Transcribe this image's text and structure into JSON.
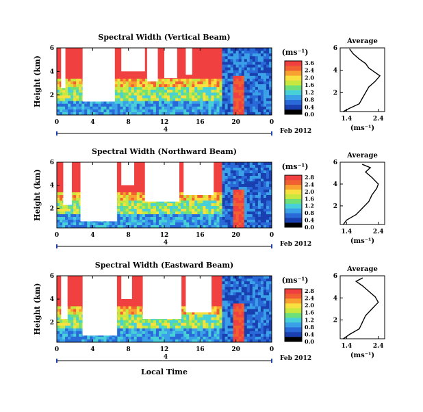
{
  "chart_data": [
    {
      "type": "heatmap",
      "title": "Spectral Width (Vertical Beam)",
      "ylabel": "Height (km)",
      "x_ticks": [
        "0",
        "4",
        "8",
        "12",
        "16",
        "20",
        "0"
      ],
      "y_ticks": [
        "6",
        "4",
        "2"
      ],
      "xlim": [
        0,
        24
      ],
      "ylim": [
        0.3,
        6
      ],
      "date_axis": {
        "mid_label": "4",
        "month_label": "Feb 2012"
      },
      "colorbar": {
        "unit": "(ms⁻¹)",
        "ticks": [
          "3.6",
          "2.4",
          "2.0",
          "1.6",
          "1.2",
          "0.8",
          "0.4",
          "0.0"
        ]
      },
      "profile": {
        "title": "Average",
        "xlabel": "(ms⁻¹)",
        "x_ticks": [
          "1.4",
          "2.4"
        ],
        "y_ticks": [
          "6",
          "4",
          "2"
        ],
        "xlim": [
          1.2,
          2.6
        ],
        "ylim": [
          0.3,
          6
        ],
        "points": [
          [
            1.3,
            0.3
          ],
          [
            1.5,
            0.6
          ],
          [
            1.8,
            1.0
          ],
          [
            1.9,
            1.5
          ],
          [
            2.0,
            2.0
          ],
          [
            2.1,
            2.5
          ],
          [
            2.3,
            3.0
          ],
          [
            2.45,
            3.5
          ],
          [
            2.3,
            3.8
          ],
          [
            2.1,
            4.2
          ],
          [
            2.0,
            4.6
          ],
          [
            1.8,
            5.0
          ],
          [
            1.6,
            5.5
          ],
          [
            1.5,
            5.9
          ]
        ]
      }
    },
    {
      "type": "heatmap",
      "title": "Spectral Width (Northward Beam)",
      "ylabel": "Height (km)",
      "x_ticks": [
        "0",
        "4",
        "8",
        "12",
        "16",
        "20",
        "0"
      ],
      "y_ticks": [
        "6",
        "4",
        "2"
      ],
      "xlim": [
        0,
        24
      ],
      "ylim": [
        0.3,
        6
      ],
      "date_axis": {
        "mid_label": "4",
        "month_label": "Feb 2012"
      },
      "colorbar": {
        "unit": "(ms⁻¹)",
        "ticks": [
          "2.8",
          "2.4",
          "2.0",
          "1.6",
          "1.2",
          "0.8",
          "0.4",
          "0.0"
        ]
      },
      "profile": {
        "title": "Average",
        "xlabel": "(ms⁻¹)",
        "x_ticks": [
          "1.4",
          "2.4"
        ],
        "y_ticks": [
          "6",
          "4",
          "2"
        ],
        "xlim": [
          1.2,
          2.6
        ],
        "ylim": [
          0.3,
          6
        ],
        "points": [
          [
            1.3,
            0.3
          ],
          [
            1.4,
            0.7
          ],
          [
            1.7,
            1.2
          ],
          [
            1.9,
            1.8
          ],
          [
            2.1,
            2.4
          ],
          [
            2.2,
            3.0
          ],
          [
            2.35,
            3.6
          ],
          [
            2.4,
            4.0
          ],
          [
            2.2,
            4.6
          ],
          [
            2.0,
            5.1
          ],
          [
            2.15,
            5.5
          ],
          [
            1.9,
            5.8
          ]
        ]
      }
    },
    {
      "type": "heatmap",
      "title": "Spectral Width (Eastward Beam)",
      "ylabel": "Height (km)",
      "x_ticks": [
        "0",
        "4",
        "8",
        "12",
        "16",
        "20",
        "0"
      ],
      "y_ticks": [
        "6",
        "4",
        "2"
      ],
      "xlim": [
        0,
        24
      ],
      "ylim": [
        0.3,
        6
      ],
      "xlabel": "Local Time",
      "date_axis": {
        "mid_label": "4",
        "month_label": "Feb 2012"
      },
      "colorbar": {
        "unit": "(ms⁻¹)",
        "ticks": [
          "2.8",
          "2.4",
          "2.0",
          "1.6",
          "1.2",
          "0.8",
          "0.4",
          "0.0"
        ]
      },
      "profile": {
        "title": "Average",
        "xlabel": "(ms⁻¹)",
        "x_ticks": [
          "1.4",
          "2.4"
        ],
        "y_ticks": [
          "6",
          "4",
          "2"
        ],
        "xlim": [
          1.2,
          2.6
        ],
        "ylim": [
          0.3,
          6
        ],
        "points": [
          [
            1.3,
            0.3
          ],
          [
            1.5,
            0.7
          ],
          [
            1.8,
            1.2
          ],
          [
            1.9,
            1.8
          ],
          [
            2.0,
            2.4
          ],
          [
            2.2,
            3.0
          ],
          [
            2.4,
            3.6
          ],
          [
            2.3,
            4.1
          ],
          [
            2.1,
            4.6
          ],
          [
            1.9,
            5.1
          ],
          [
            1.7,
            5.5
          ],
          [
            1.9,
            5.8
          ]
        ]
      }
    }
  ],
  "colors": {
    "scale": [
      "#000000",
      "#1a3fb0",
      "#2a6ad8",
      "#3aa0e8",
      "#48d0d8",
      "#6ee07a",
      "#c8e840",
      "#f8e040",
      "#f8a030",
      "#f06030",
      "#f04040"
    ]
  }
}
